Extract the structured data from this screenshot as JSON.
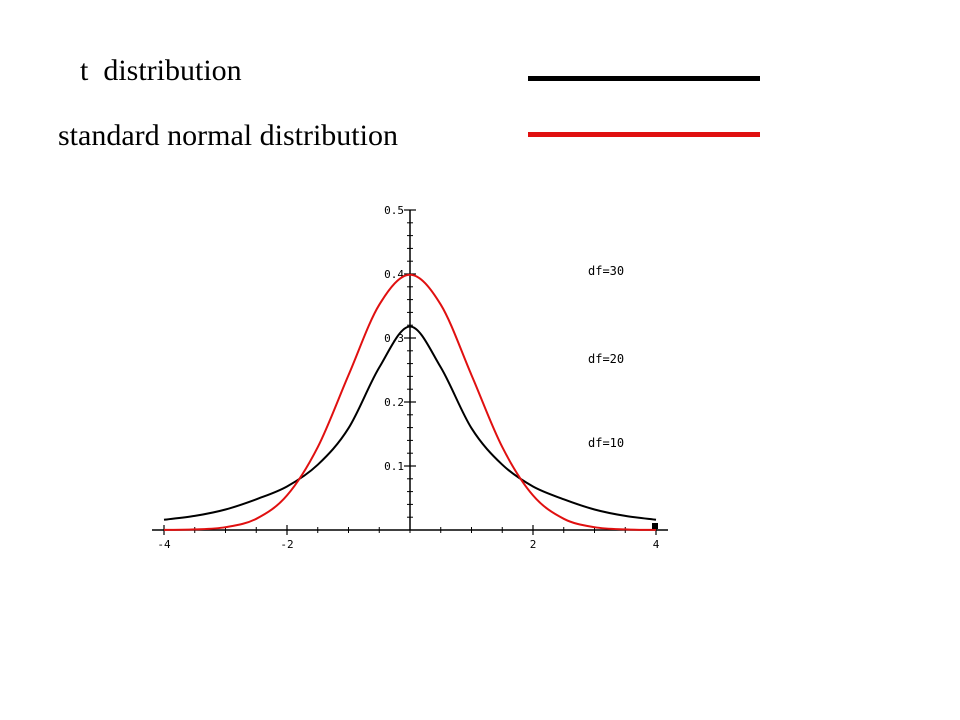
{
  "legend": {
    "items": [
      {
        "label": "t  distribution",
        "color": "#000000"
      },
      {
        "label": "standard normal distribution",
        "color": "#e01010"
      }
    ]
  },
  "chart_data": {
    "type": "line",
    "title": "",
    "xlabel": "",
    "ylabel": "",
    "xlim": [
      -4,
      4
    ],
    "ylim": [
      0,
      0.5
    ],
    "x_ticks": [
      -4,
      -2,
      2,
      4
    ],
    "x_tick_labels": [
      "-4",
      "-2",
      "2",
      "4"
    ],
    "y_ticks": [
      0.1,
      0.2,
      0.3,
      0.4,
      0.5
    ],
    "y_tick_labels": [
      "0.1",
      "0.2",
      "0.3",
      "0.4",
      "0.5"
    ],
    "grid": false,
    "annotations": [
      "df=30",
      "df=20",
      "df=10"
    ],
    "series": [
      {
        "name": "t  distribution",
        "color": "#000000",
        "x": [
          -4,
          -3.5,
          -3,
          -2.5,
          -2,
          -1.5,
          -1,
          -0.5,
          0,
          0.5,
          1,
          1.5,
          2,
          2.5,
          3,
          3.5,
          4
        ],
        "y": [
          0.016,
          0.022,
          0.032,
          0.048,
          0.068,
          0.102,
          0.159,
          0.254,
          0.318,
          0.254,
          0.159,
          0.102,
          0.068,
          0.048,
          0.032,
          0.022,
          0.016
        ]
      },
      {
        "name": "standard normal distribution",
        "color": "#e01010",
        "x": [
          -4,
          -3.5,
          -3,
          -2.5,
          -2,
          -1.5,
          -1,
          -0.5,
          0,
          0.5,
          1,
          1.5,
          2,
          2.5,
          3,
          3.5,
          4
        ],
        "y": [
          0.0001,
          0.0009,
          0.0044,
          0.0175,
          0.054,
          0.1295,
          0.242,
          0.3521,
          0.3989,
          0.3521,
          0.242,
          0.1295,
          0.054,
          0.0175,
          0.0044,
          0.0009,
          0.0001
        ]
      }
    ]
  }
}
